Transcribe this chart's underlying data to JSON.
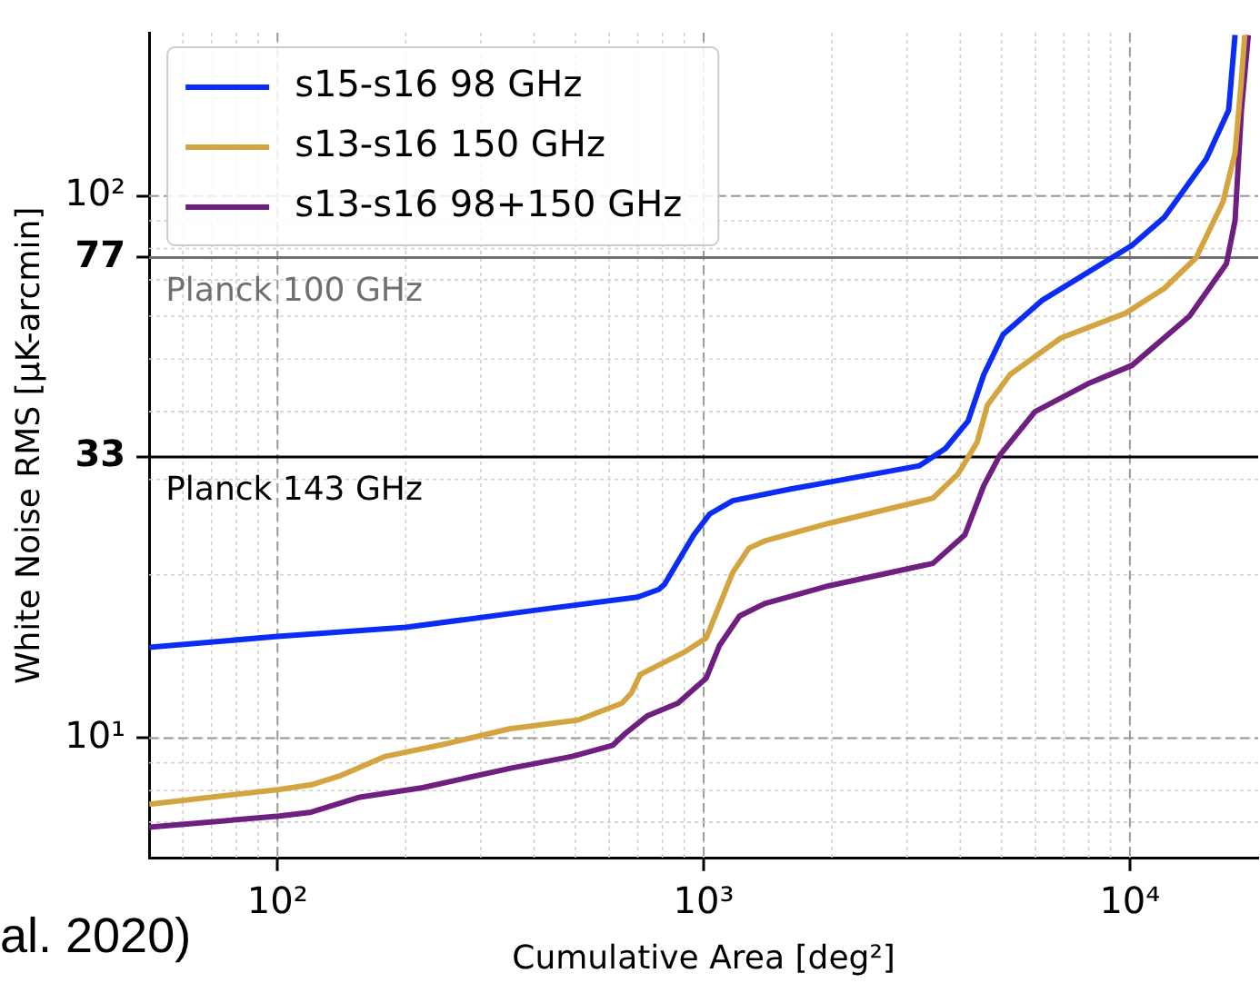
{
  "chart_data": {
    "type": "line",
    "xlabel": "Cumulative Area [deg²]",
    "ylabel": "White Noise RMS [μK-arcmin]",
    "log": "xy",
    "grid": true,
    "legend": "top left",
    "marker": "none",
    "line_style": "solid",
    "xlim": [
      50,
      20000
    ],
    "ylim": [
      6,
      200
    ],
    "xticks": [
      {
        "value": 100,
        "label": "10²"
      },
      {
        "value": 1000,
        "label": "10³"
      },
      {
        "value": 10000,
        "label": "10⁴"
      }
    ],
    "yticks": [
      {
        "value": 10,
        "label": "10¹"
      },
      {
        "value": 100,
        "label": "10²"
      },
      33,
      77
    ],
    "series": [
      {
        "name": "s15-s16 98 GHz",
        "color": "#0a2cf5",
        "x": [
          50,
          100,
          200,
          400,
          700,
          785,
          809,
          948,
          1033,
          1170,
          1600,
          2042,
          3210,
          3690,
          4170,
          4540,
          5040,
          6210,
          10120,
          12040,
          15110,
          17050,
          17650
        ],
        "values": [
          14.7,
          15.4,
          16.0,
          17.2,
          18.2,
          18.8,
          19.2,
          23.7,
          25.9,
          27.4,
          28.8,
          29.8,
          31.8,
          34.2,
          38.4,
          46.8,
          55.5,
          64.1,
          81.1,
          91.3,
          117,
          144,
          198
        ]
      },
      {
        "name": "s13-s16 150 GHz",
        "color": "#d4a440",
        "x": [
          50,
          101,
          120,
          141,
          179,
          250,
          350,
          508,
          643,
          676,
          710,
          900,
          1014,
          1170,
          1277,
          1390,
          1970,
          3450,
          3950,
          4380,
          4630,
          5230,
          6890,
          9780,
          12040,
          14300,
          16540,
          17650,
          18270,
          18600
        ],
        "values": [
          7.55,
          8.04,
          8.2,
          8.53,
          9.25,
          9.77,
          10.4,
          10.8,
          11.6,
          12.1,
          13.1,
          14.4,
          15.3,
          20.2,
          22.4,
          23.1,
          24.9,
          27.7,
          30.7,
          35.1,
          41.1,
          46.8,
          54.7,
          60.8,
          67.5,
          76.9,
          97.5,
          120,
          164,
          198
        ]
      },
      {
        "name": "s13-s16 98+150 GHz",
        "color": "#6f1f7f",
        "x": [
          50,
          101,
          120,
          156,
          219,
          350,
          491,
          612,
          655,
          739,
          870,
          1014,
          1088,
          1214,
          1390,
          1970,
          3450,
          4100,
          4540,
          4960,
          5990,
          7960,
          10120,
          13800,
          16850,
          17650,
          18270,
          18960
        ],
        "values": [
          6.85,
          7.18,
          7.3,
          7.78,
          8.1,
          8.79,
          9.25,
          9.7,
          10.2,
          11.0,
          11.6,
          12.9,
          14.8,
          16.8,
          17.7,
          19.1,
          21.0,
          23.7,
          29.2,
          33.3,
          40.0,
          45.0,
          48.7,
          60.0,
          75.0,
          90,
          144,
          198
        ]
      }
    ],
    "ref_lines": [
      {
        "axis": "y",
        "value": 77,
        "label": "Planck 100 GHz",
        "color": "#707070"
      },
      {
        "axis": "y",
        "value": 33,
        "label": "Planck 143 GHz",
        "color": "#000000"
      }
    ],
    "annotations": [
      "al. 2020)"
    ]
  }
}
